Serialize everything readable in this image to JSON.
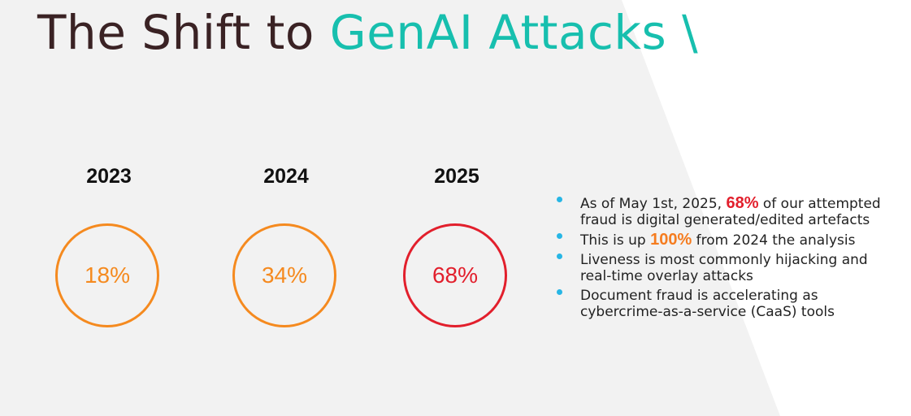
{
  "colors": {
    "title_dark": "#3a2224",
    "title_accent": "#17bfae",
    "ring_orange": "#f58a1f",
    "ring_red": "#e21f2c",
    "bullet_dot": "#27b6e5",
    "highlight_orange": "#f57c1f",
    "background_panel": "#f2f2f2"
  },
  "title": {
    "part1": "The Shift to ",
    "part2": "GenAI Attacks \\"
  },
  "stats": [
    {
      "year": "2023",
      "percent": "18%",
      "color": "orange"
    },
    {
      "year": "2024",
      "percent": "34%",
      "color": "orange"
    },
    {
      "year": "2025",
      "percent": "68%",
      "color": "red"
    }
  ],
  "bullets": [
    {
      "pre": "As of May 1st, 2025, ",
      "highlight": "68%",
      "post": " of our attempted fraud is digital generated/edited artefacts"
    },
    {
      "pre": "This is up ",
      "highlight": "100%",
      "post": " from 2024 the analysis"
    },
    {
      "text": "Liveness is most commonly hijacking and real-time overlay attacks"
    },
    {
      "text": "Document fraud is accelerating as cybercrime-as-a-service (CaaS) tools"
    }
  ]
}
